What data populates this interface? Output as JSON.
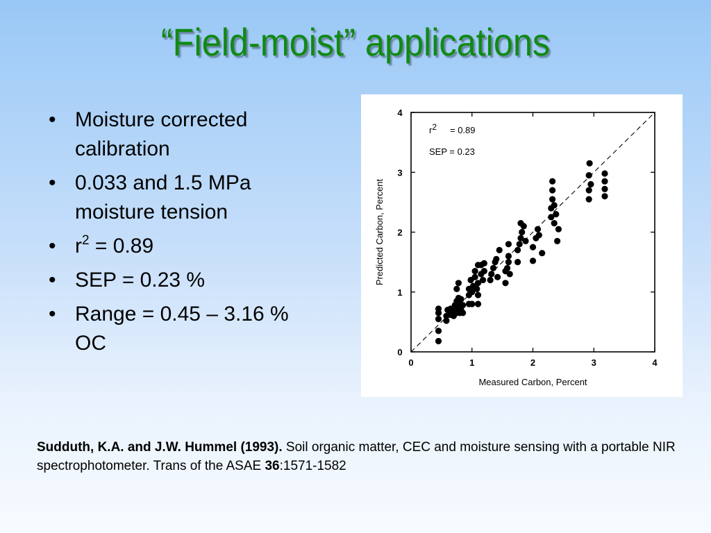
{
  "slide": {
    "title": "“Field-moist” applications",
    "bullets": [
      {
        "text_lines": [
          "Moisture corrected",
          "calibration"
        ]
      },
      {
        "text_lines": [
          "0.033 and 1.5 MPa",
          "moisture tension"
        ]
      },
      {
        "prefix": "r",
        "sup": "2",
        "suffix": " = 0.89"
      },
      {
        "text": "SEP = 0.23 %"
      },
      {
        "text_lines": [
          "Range = 0.45 – 3.16 %",
          "OC"
        ]
      }
    ],
    "bullet_char": "•",
    "citation": {
      "authors": "Sudduth, K.A. and J.W. Hummel (1993).",
      "text1": "  Soil organic matter, CEC and moisture sensing with a portable NIR spectrophotometer.  Trans of the ASAE ",
      "volume": "36",
      "pages": ":1571-1582"
    }
  },
  "chart_data": {
    "type": "scatter",
    "xlabel": "Measured Carbon, Percent",
    "ylabel": "Predicted Carbon, Percent",
    "xlim": [
      0,
      4
    ],
    "ylim": [
      0,
      4
    ],
    "xticks": [
      "0",
      "1",
      "2",
      "3",
      "4"
    ],
    "yticks": [
      "0",
      "1",
      "2",
      "3",
      "4"
    ],
    "reference_line": "1:1 dashed",
    "annotations": {
      "r2_label": "r",
      "r2_sup": "2",
      "r2_value": "= 0.89",
      "sep": "SEP = 0.23"
    },
    "points": [
      [
        0.45,
        0.18
      ],
      [
        0.45,
        0.35
      ],
      [
        0.45,
        0.55
      ],
      [
        0.45,
        0.65
      ],
      [
        0.45,
        0.72
      ],
      [
        0.58,
        0.52
      ],
      [
        0.58,
        0.6
      ],
      [
        0.6,
        0.7
      ],
      [
        0.65,
        0.62
      ],
      [
        0.65,
        0.72
      ],
      [
        0.7,
        0.6
      ],
      [
        0.7,
        0.7
      ],
      [
        0.72,
        0.78
      ],
      [
        0.75,
        0.65
      ],
      [
        0.75,
        0.75
      ],
      [
        0.75,
        0.85
      ],
      [
        0.75,
        1.05
      ],
      [
        0.78,
        0.9
      ],
      [
        0.78,
        1.15
      ],
      [
        0.8,
        0.65
      ],
      [
        0.8,
        0.72
      ],
      [
        0.8,
        0.8
      ],
      [
        0.82,
        0.7
      ],
      [
        0.82,
        0.88
      ],
      [
        0.85,
        0.65
      ],
      [
        0.85,
        0.78
      ],
      [
        0.95,
        0.8
      ],
      [
        0.95,
        0.95
      ],
      [
        0.95,
        1.05
      ],
      [
        0.98,
        1.2
      ],
      [
        1.0,
        0.8
      ],
      [
        1.0,
        1.0
      ],
      [
        1.02,
        1.1
      ],
      [
        1.05,
        1.25
      ],
      [
        1.05,
        1.35
      ],
      [
        1.08,
        1.05
      ],
      [
        1.1,
        0.8
      ],
      [
        1.1,
        0.95
      ],
      [
        1.1,
        1.15
      ],
      [
        1.1,
        1.45
      ],
      [
        1.15,
        1.3
      ],
      [
        1.15,
        1.45
      ],
      [
        1.18,
        1.2
      ],
      [
        1.2,
        1.35
      ],
      [
        1.2,
        1.48
      ],
      [
        1.3,
        1.2
      ],
      [
        1.32,
        1.3
      ],
      [
        1.35,
        1.4
      ],
      [
        1.38,
        1.5
      ],
      [
        1.4,
        1.55
      ],
      [
        1.42,
        1.25
      ],
      [
        1.45,
        1.7
      ],
      [
        1.55,
        1.15
      ],
      [
        1.55,
        1.35
      ],
      [
        1.58,
        1.4
      ],
      [
        1.6,
        1.5
      ],
      [
        1.6,
        1.6
      ],
      [
        1.6,
        1.8
      ],
      [
        1.62,
        1.3
      ],
      [
        1.75,
        1.5
      ],
      [
        1.75,
        1.7
      ],
      [
        1.78,
        1.8
      ],
      [
        1.8,
        1.9
      ],
      [
        1.8,
        2.15
      ],
      [
        1.82,
        2.0
      ],
      [
        1.85,
        2.1
      ],
      [
        1.88,
        1.85
      ],
      [
        2.0,
        1.52
      ],
      [
        2.0,
        1.75
      ],
      [
        2.05,
        1.9
      ],
      [
        2.08,
        2.05
      ],
      [
        2.1,
        1.95
      ],
      [
        2.15,
        1.65
      ],
      [
        2.3,
        2.25
      ],
      [
        2.3,
        2.4
      ],
      [
        2.32,
        2.55
      ],
      [
        2.32,
        2.7
      ],
      [
        2.32,
        2.85
      ],
      [
        2.35,
        2.45
      ],
      [
        2.35,
        2.15
      ],
      [
        2.38,
        2.3
      ],
      [
        2.4,
        1.85
      ],
      [
        2.42,
        2.05
      ],
      [
        2.92,
        2.55
      ],
      [
        2.92,
        2.7
      ],
      [
        2.92,
        2.95
      ],
      [
        2.93,
        3.15
      ],
      [
        2.95,
        2.8
      ],
      [
        3.18,
        2.6
      ],
      [
        3.18,
        2.72
      ],
      [
        3.18,
        2.85
      ],
      [
        3.18,
        2.98
      ]
    ]
  }
}
